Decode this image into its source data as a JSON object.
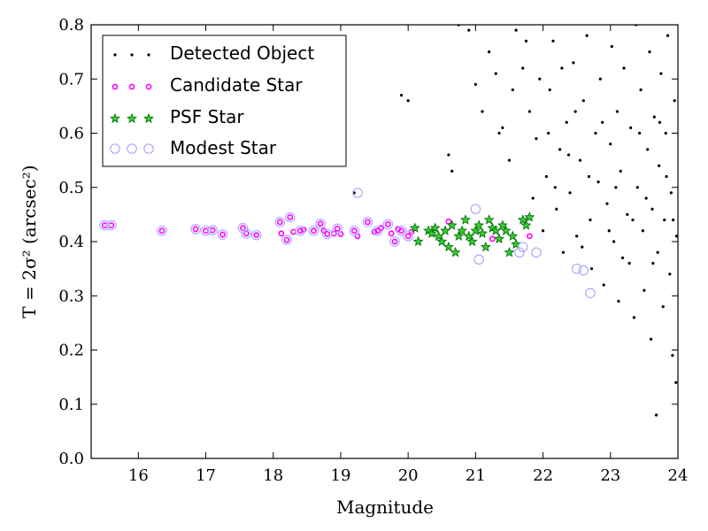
{
  "chart_data": {
    "type": "scatter",
    "xlabel": "Magnitude",
    "ylabel": "T = 2σ² (arcsec²)",
    "xlim": [
      15.3,
      24
    ],
    "ylim": [
      0.0,
      0.8
    ],
    "x_ticks": [
      16,
      17,
      18,
      19,
      20,
      21,
      22,
      23,
      24
    ],
    "y_ticks": [
      0.0,
      0.1,
      0.2,
      0.3,
      0.4,
      0.5,
      0.6,
      0.7,
      0.8
    ],
    "x_tick_labels": [
      "16",
      "17",
      "18",
      "19",
      "20",
      "21",
      "22",
      "23",
      "24"
    ],
    "y_tick_labels": [
      "0.0",
      "0.1",
      "0.2",
      "0.3",
      "0.4",
      "0.5",
      "0.6",
      "0.7",
      "0.8"
    ],
    "grid": false,
    "legend_position": "top-left",
    "colors": {
      "detected": "#000000",
      "candidate": "#ff00ff",
      "psf_fill": "#33cc33",
      "psf_edge": "#006600",
      "modest": "#aaaaff"
    },
    "series": [
      {
        "name": "Detected Object",
        "marker": "dot",
        "points": [
          [
            19.2,
            0.49
          ],
          [
            19.9,
            0.67
          ],
          [
            20,
            0.66
          ],
          [
            20.6,
            0.56
          ],
          [
            20.65,
            0.53
          ],
          [
            20.75,
            0.8
          ],
          [
            20.9,
            0.79
          ],
          [
            21.2,
            0.75
          ],
          [
            21.3,
            0.71
          ],
          [
            21.4,
            0.61
          ],
          [
            21.5,
            0.55
          ],
          [
            21.6,
            0.79
          ],
          [
            21.7,
            0.72
          ],
          [
            21.8,
            0.64
          ],
          [
            21.9,
            0.59
          ],
          [
            22.0,
            0.42
          ],
          [
            22.05,
            0.52
          ],
          [
            22.1,
            0.68
          ],
          [
            22.15,
            0.77
          ],
          [
            22.2,
            0.46
          ],
          [
            22.25,
            0.57
          ],
          [
            22.3,
            0.38
          ],
          [
            22.35,
            0.62
          ],
          [
            22.4,
            0.49
          ],
          [
            22.45,
            0.73
          ],
          [
            22.5,
            0.41
          ],
          [
            22.55,
            0.55
          ],
          [
            22.6,
            0.66
          ],
          [
            22.65,
            0.78
          ],
          [
            22.7,
            0.44
          ],
          [
            22.72,
            0.35
          ],
          [
            22.78,
            0.6
          ],
          [
            22.82,
            0.51
          ],
          [
            22.85,
            0.7
          ],
          [
            22.9,
            0.32
          ],
          [
            22.95,
            0.47
          ],
          [
            23.0,
            0.58
          ],
          [
            23.02,
            0.76
          ],
          [
            23.05,
            0.4
          ],
          [
            23.1,
            0.64
          ],
          [
            23.12,
            0.29
          ],
          [
            23.15,
            0.53
          ],
          [
            23.2,
            0.72
          ],
          [
            23.25,
            0.45
          ],
          [
            23.28,
            0.36
          ],
          [
            23.3,
            0.61
          ],
          [
            23.35,
            0.26
          ],
          [
            23.38,
            0.8
          ],
          [
            23.4,
            0.5
          ],
          [
            23.45,
            0.68
          ],
          [
            23.48,
            0.42
          ],
          [
            23.5,
            0.31
          ],
          [
            23.55,
            0.57
          ],
          [
            23.58,
            0.75
          ],
          [
            23.6,
            0.22
          ],
          [
            23.62,
            0.46
          ],
          [
            23.65,
            0.63
          ],
          [
            23.68,
            0.08
          ],
          [
            23.7,
            0.38
          ],
          [
            23.72,
            0.54
          ],
          [
            23.75,
            0.71
          ],
          [
            23.78,
            0.28
          ],
          [
            23.8,
            0.44
          ],
          [
            23.82,
            0.6
          ],
          [
            23.85,
            0.78
          ],
          [
            23.88,
            0.34
          ],
          [
            23.9,
            0.49
          ],
          [
            23.92,
            0.19
          ],
          [
            23.95,
            0.66
          ],
          [
            23.97,
            0.14
          ],
          [
            23.98,
            0.41
          ],
          [
            21.0,
            0.69
          ],
          [
            21.1,
            0.64
          ],
          [
            21.35,
            0.6
          ],
          [
            21.55,
            0.68
          ],
          [
            21.75,
            0.77
          ],
          [
            21.85,
            0.48
          ],
          [
            21.95,
            0.7
          ],
          [
            22.08,
            0.6
          ],
          [
            22.18,
            0.5
          ],
          [
            22.28,
            0.72
          ],
          [
            22.38,
            0.56
          ],
          [
            22.48,
            0.64
          ],
          [
            22.58,
            0.39
          ],
          [
            22.68,
            0.52
          ],
          [
            22.88,
            0.62
          ],
          [
            22.98,
            0.42
          ],
          [
            23.08,
            0.5
          ],
          [
            23.18,
            0.37
          ],
          [
            23.33,
            0.44
          ],
          [
            23.43,
            0.6
          ],
          [
            23.53,
            0.48
          ],
          [
            23.63,
            0.36
          ],
          [
            23.73,
            0.62
          ],
          [
            23.83,
            0.52
          ],
          [
            23.93,
            0.44
          ]
        ]
      },
      {
        "name": "Candidate Star",
        "marker": "ring",
        "points": [
          [
            15.5,
            0.43
          ],
          [
            15.6,
            0.43
          ],
          [
            16.35,
            0.42
          ],
          [
            16.85,
            0.423
          ],
          [
            17.0,
            0.42
          ],
          [
            17.1,
            0.421
          ],
          [
            17.25,
            0.413
          ],
          [
            17.55,
            0.425
          ],
          [
            17.6,
            0.415
          ],
          [
            17.75,
            0.412
          ],
          [
            18.1,
            0.436
          ],
          [
            18.12,
            0.415
          ],
          [
            18.2,
            0.403
          ],
          [
            18.25,
            0.445
          ],
          [
            18.3,
            0.418
          ],
          [
            18.4,
            0.42
          ],
          [
            18.45,
            0.422
          ],
          [
            18.6,
            0.42
          ],
          [
            18.7,
            0.433
          ],
          [
            18.75,
            0.42
          ],
          [
            18.8,
            0.414
          ],
          [
            18.9,
            0.415
          ],
          [
            18.95,
            0.424
          ],
          [
            19.0,
            0.414
          ],
          [
            19.2,
            0.42
          ],
          [
            19.25,
            0.41
          ],
          [
            19.4,
            0.436
          ],
          [
            19.5,
            0.418
          ],
          [
            19.55,
            0.42
          ],
          [
            19.6,
            0.425
          ],
          [
            19.7,
            0.432
          ],
          [
            19.75,
            0.415
          ],
          [
            19.8,
            0.4
          ],
          [
            19.85,
            0.423
          ],
          [
            19.9,
            0.42
          ],
          [
            20.0,
            0.41
          ],
          [
            20.05,
            0.418
          ],
          [
            20.6,
            0.437
          ],
          [
            21.25,
            0.405
          ],
          [
            21.8,
            0.41
          ]
        ]
      },
      {
        "name": "PSF Star",
        "marker": "star",
        "points": [
          [
            20.1,
            0.425
          ],
          [
            20.15,
            0.4
          ],
          [
            20.3,
            0.42
          ],
          [
            20.35,
            0.415
          ],
          [
            20.4,
            0.425
          ],
          [
            20.45,
            0.41
          ],
          [
            20.5,
            0.4
          ],
          [
            20.55,
            0.42
          ],
          [
            20.6,
            0.39
          ],
          [
            20.65,
            0.43
          ],
          [
            20.7,
            0.38
          ],
          [
            20.75,
            0.41
          ],
          [
            20.8,
            0.42
          ],
          [
            20.85,
            0.44
          ],
          [
            20.9,
            0.41
          ],
          [
            20.95,
            0.4
          ],
          [
            21.0,
            0.42
          ],
          [
            21.05,
            0.43
          ],
          [
            21.1,
            0.415
          ],
          [
            21.15,
            0.39
          ],
          [
            21.2,
            0.44
          ],
          [
            21.25,
            0.425
          ],
          [
            21.3,
            0.42
          ],
          [
            21.35,
            0.405
          ],
          [
            21.4,
            0.43
          ],
          [
            21.45,
            0.42
          ],
          [
            21.5,
            0.38
          ],
          [
            21.55,
            0.41
          ],
          [
            21.6,
            0.395
          ],
          [
            21.7,
            0.44
          ],
          [
            21.75,
            0.43
          ],
          [
            21.8,
            0.445
          ]
        ]
      },
      {
        "name": "Modest Star",
        "marker": "circle",
        "points": [
          [
            15.5,
            0.43
          ],
          [
            15.6,
            0.43
          ],
          [
            16.35,
            0.42
          ],
          [
            16.85,
            0.423
          ],
          [
            17.0,
            0.42
          ],
          [
            17.1,
            0.421
          ],
          [
            17.25,
            0.413
          ],
          [
            17.55,
            0.425
          ],
          [
            17.6,
            0.415
          ],
          [
            17.75,
            0.412
          ],
          [
            18.1,
            0.436
          ],
          [
            18.2,
            0.403
          ],
          [
            18.25,
            0.445
          ],
          [
            18.4,
            0.42
          ],
          [
            18.6,
            0.42
          ],
          [
            18.7,
            0.433
          ],
          [
            18.8,
            0.414
          ],
          [
            18.95,
            0.424
          ],
          [
            19.2,
            0.42
          ],
          [
            19.25,
            0.49
          ],
          [
            19.4,
            0.436
          ],
          [
            19.55,
            0.42
          ],
          [
            19.7,
            0.432
          ],
          [
            19.8,
            0.4
          ],
          [
            19.9,
            0.42
          ],
          [
            20.0,
            0.41
          ],
          [
            21.0,
            0.46
          ],
          [
            21.05,
            0.367
          ],
          [
            21.65,
            0.38
          ],
          [
            21.7,
            0.39
          ],
          [
            21.9,
            0.38
          ],
          [
            22.5,
            0.35
          ],
          [
            22.6,
            0.347
          ],
          [
            22.7,
            0.305
          ]
        ]
      }
    ]
  }
}
